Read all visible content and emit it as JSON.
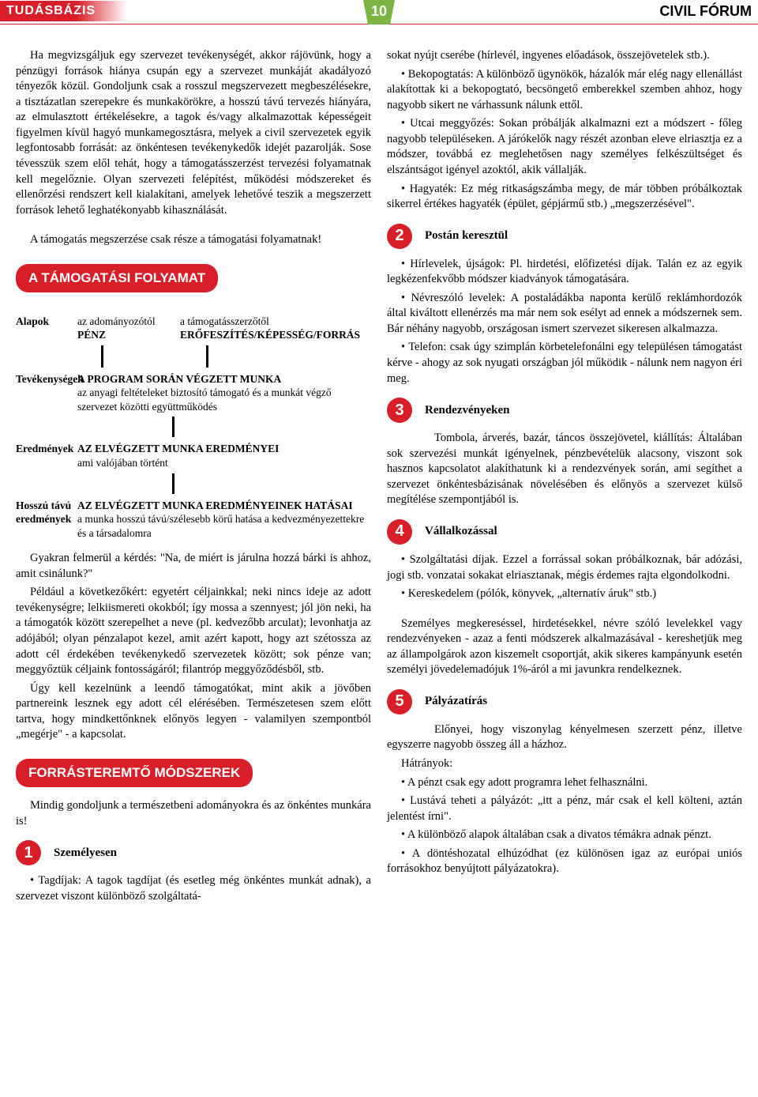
{
  "header": {
    "left": "TUDÁSBÁZIS",
    "right": "CIVIL FÓRUM",
    "page": "10"
  },
  "left_col": {
    "p1": "Ha megvizsgáljuk egy szervezet tevékenységét, akkor rájövünk, hogy a pénzügyi források hiánya csupán egy a szervezet munkáját akadályozó tényezők közül. Gondoljunk csak a rosszul megszervezett megbeszélésekre, a tisztázatlan szerepekre és munkakörökre, a hosszú távú tervezés hiányára, az elmulasztott értékelésekre, a tagok és/vagy alkalmazottak képességeit figyelmen kívül hagyó munkamegosztásra, melyek a civil szervezetek egyik legfontosabb forrását: az önkéntesen tevékenykedők idejét pazarolják. Sose tévesszük szem elől tehát, hogy a támogatásszerzést tervezési folyamatnak kell megelőznie. Olyan szervezeti felépítést, működési módszereket és ellenőrzési rendszert kell kialakítani, amelyek lehetővé teszik a megszerzett források lehető leghatékonyabb kihasználását.",
    "p2": "A támogatás megszerzése csak része a támogatási folyamatnak!",
    "box1": "A TÁMOGATÁSI FOLYAMAT",
    "flow": {
      "r1_label": "Alapok",
      "r1_a_sub": "az adományozótól",
      "r1_a": "PÉNZ",
      "r1_b_sub": "a támogatásszerzőtől",
      "r1_b": "ERŐFESZÍTÉS/KÉPESSÉG/FORRÁS",
      "r2_label": "Tevékenységek",
      "r2_a": "A PROGRAM SORÁN VÉGZETT MUNKA",
      "r2_b": "az anyagi feltételeket biztosító támogató és a munkát végző szervezet közötti együttműködés",
      "r3_label": "Eredmények",
      "r3_a": "AZ ELVÉGZETT MUNKA EREDMÉNYEI",
      "r3_b": "ami valójában történt",
      "r4_label": "Hosszú távú eredmények",
      "r4_a": "AZ ELVÉGZETT MUNKA EREDMÉNYEINEK HATÁSAI",
      "r4_b": "a munka hosszú távú/szélesebb körű hatása a kedvezményezettekre és a társadalomra"
    },
    "p3": "Gyakran felmerül a kérdés: \"Na, de miért is járulna hozzá bárki is ahhoz, amit csinálunk?\"",
    "p4": "Például a következőkért: egyetért céljainkkal; neki nincs ideje az adott tevékenységre; lelkiismereti okokból; így mossa a szennyest; jól jön neki, ha a támogatók között szerepelhet a neve (pl. kedvezőbb arculat); levonhatja az adójából; olyan pénzalapot kezel, amit azért kapott, hogy azt szétossza az adott cél érdekében tevékenykedő szervezetek között; sok pénze van; meggyőztük céljaink fontosságáról; filantróp meggyőződésből, stb.",
    "p5": "Úgy kell kezelnünk a leendő támogatókat, mint akik a jövőben partnereink lesznek egy adott cél elérésében. Természetesen szem előtt tartva, hogy mindkettőnknek előnyös legyen - valamilyen szempontból „megérje\" - a kapcsolat.",
    "box2": "FORRÁSTEREMTŐ MÓDSZEREK",
    "p6": "Mindig gondoljunk a természetbeni adományokra és az önkéntes munkára is!",
    "n1": "1",
    "n1_label": "Személyesen",
    "p7": "• Tagdíjak: A tagok tagdíjat (és esetleg még önkéntes munkát adnak), a szervezet viszont különböző szolgáltatá-"
  },
  "right_col": {
    "p1": "sokat nyújt cserébe (hírlevél, ingyenes előadások, összejövetelek stb.).",
    "p2": "• Bekopogtatás: A különböző ügynökök, házalók már elég nagy ellenállást alakítottak ki a bekopogtató, becsöngető emberekkel szemben ahhoz, hogy nagyobb sikert ne várhassunk nálunk ettől.",
    "p3": "• Utcai meggyőzés: Sokan próbálják alkalmazni ezt a módszert - főleg nagyobb településeken. A járókelők nagy részét azonban eleve elriasztja ez a módszer, továbbá ez meglehetősen nagy személyes felkészültséget és elszántságot igényel azoktól, akik vállalják.",
    "p4": "• Hagyaték: Ez még ritkaságszámba megy, de már többen próbálkoztak sikerrel értékes hagyaték (épület, gépjármű stb.) „megszerzésével\".",
    "n2": "2",
    "n2_label": "Postán keresztül",
    "p5": "• Hírlevelek, újságok: Pl. hirdetési, előfizetési díjak. Talán ez az egyik legkézenfekvőbb módszer kiadványok támogatására.",
    "p6": "• Névreszóló levelek: A postaládákba naponta kerülő reklámhordozók által kiváltott ellenérzés ma már nem sok esélyt ad ennek a módszernek sem. Bár néhány nagyobb, országosan ismert szervezet sikeresen alkalmazza.",
    "p7": "• Telefon: csak úgy szimplán körbetelefonálni egy településen támogatást kérve - ahogy az sok nyugati országban jól működik - nálunk nem nagyon éri meg.",
    "n3": "3",
    "n3_label": "Rendezvényeken",
    "p8": "Tombola, árverés, bazár, táncos összejövetel, kiállítás: Általában sok szervezési munkát igényelnek, pénzbevételük alacsony, viszont sok hasznos kapcsolatot alakíthatunk ki a rendezvények során, ami segíthet a szervezet önkéntesbázisának növelésében és előnyös a szervezet külső megítélése szempontjából is.",
    "n4": "4",
    "n4_label": "Vállalkozással",
    "p9": "• Szolgáltatási díjak. Ezzel a forrással sokan próbálkoznak, bár adózási, jogi stb. vonzatai sokakat elriasztanak, mégis érdemes rajta elgondolkodni.",
    "p10": "• Kereskedelem (pólók, könyvek, „alternatív áruk\" stb.)",
    "p11": "Személyes megkereséssel, hirdetésekkel, névre szóló levelekkel vagy rendezvényeken - azaz a fenti módszerek alkalmazásával - kereshetjük meg az állampolgárok azon kiszemelt csoportját, akik sikeres kampányunk esetén személyi jövedelemadójuk 1%-áról a mi javunkra rendelkeznek.",
    "n5": "5",
    "n5_label": "Pályázatírás",
    "p12": "Előnyei, hogy viszonylag kényelmesen szerzett pénz, illetve egyszerre nagyobb összeg áll a házhoz.",
    "p13": "Hátrányok:",
    "p14": "• A pénzt csak egy adott programra lehet felhasználni.",
    "p15": "• Lustává teheti a pályázót: „itt a pénz, már csak el kell költeni, aztán jelentést írni\".",
    "p16": "• A különböző alapok általában csak a divatos témákra adnak pénzt.",
    "p17": "• A döntéshozatal elhúzódhat (ez különösen igaz az európai uniós forrásokhoz benyújtott pályázatokra)."
  }
}
